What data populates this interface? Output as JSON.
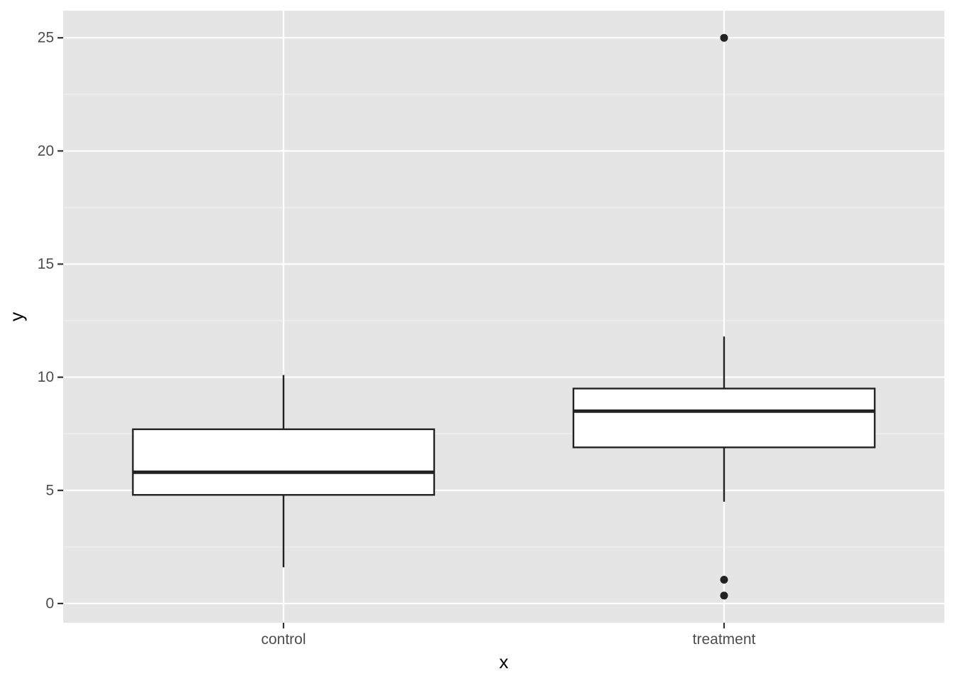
{
  "chart_data": {
    "type": "boxplot",
    "xlabel": "x",
    "ylabel": "y",
    "categories": [
      "control",
      "treatment"
    ],
    "ylim": [
      -0.85,
      26.2
    ],
    "yticks": [
      0,
      5,
      10,
      15,
      20,
      25
    ],
    "ytick_labels": [
      "0",
      "5",
      "10",
      "15",
      "20",
      "25"
    ],
    "yminor": [
      2.5,
      7.5,
      12.5,
      17.5,
      22.5
    ],
    "grid": true,
    "legend": "none",
    "boxes": [
      {
        "category": "control",
        "whisker_low": 1.6,
        "q1": 4.8,
        "median": 5.8,
        "q3": 7.7,
        "whisker_high": 10.1,
        "outliers": []
      },
      {
        "category": "treatment",
        "whisker_low": 4.5,
        "q1": 6.9,
        "median": 8.5,
        "q3": 9.5,
        "whisker_high": 11.8,
        "outliers": [
          25.0,
          1.05,
          0.35
        ]
      }
    ],
    "colors": {
      "panel_background": "#e5e5e5",
      "grid_major": "#ffffff",
      "grid_minor": "#f2f2f2",
      "box_fill": "#ffffff",
      "box_line": "#222222",
      "axis_text": "#4d4d4d",
      "axis_title": "#000000",
      "tick": "#333333"
    }
  }
}
